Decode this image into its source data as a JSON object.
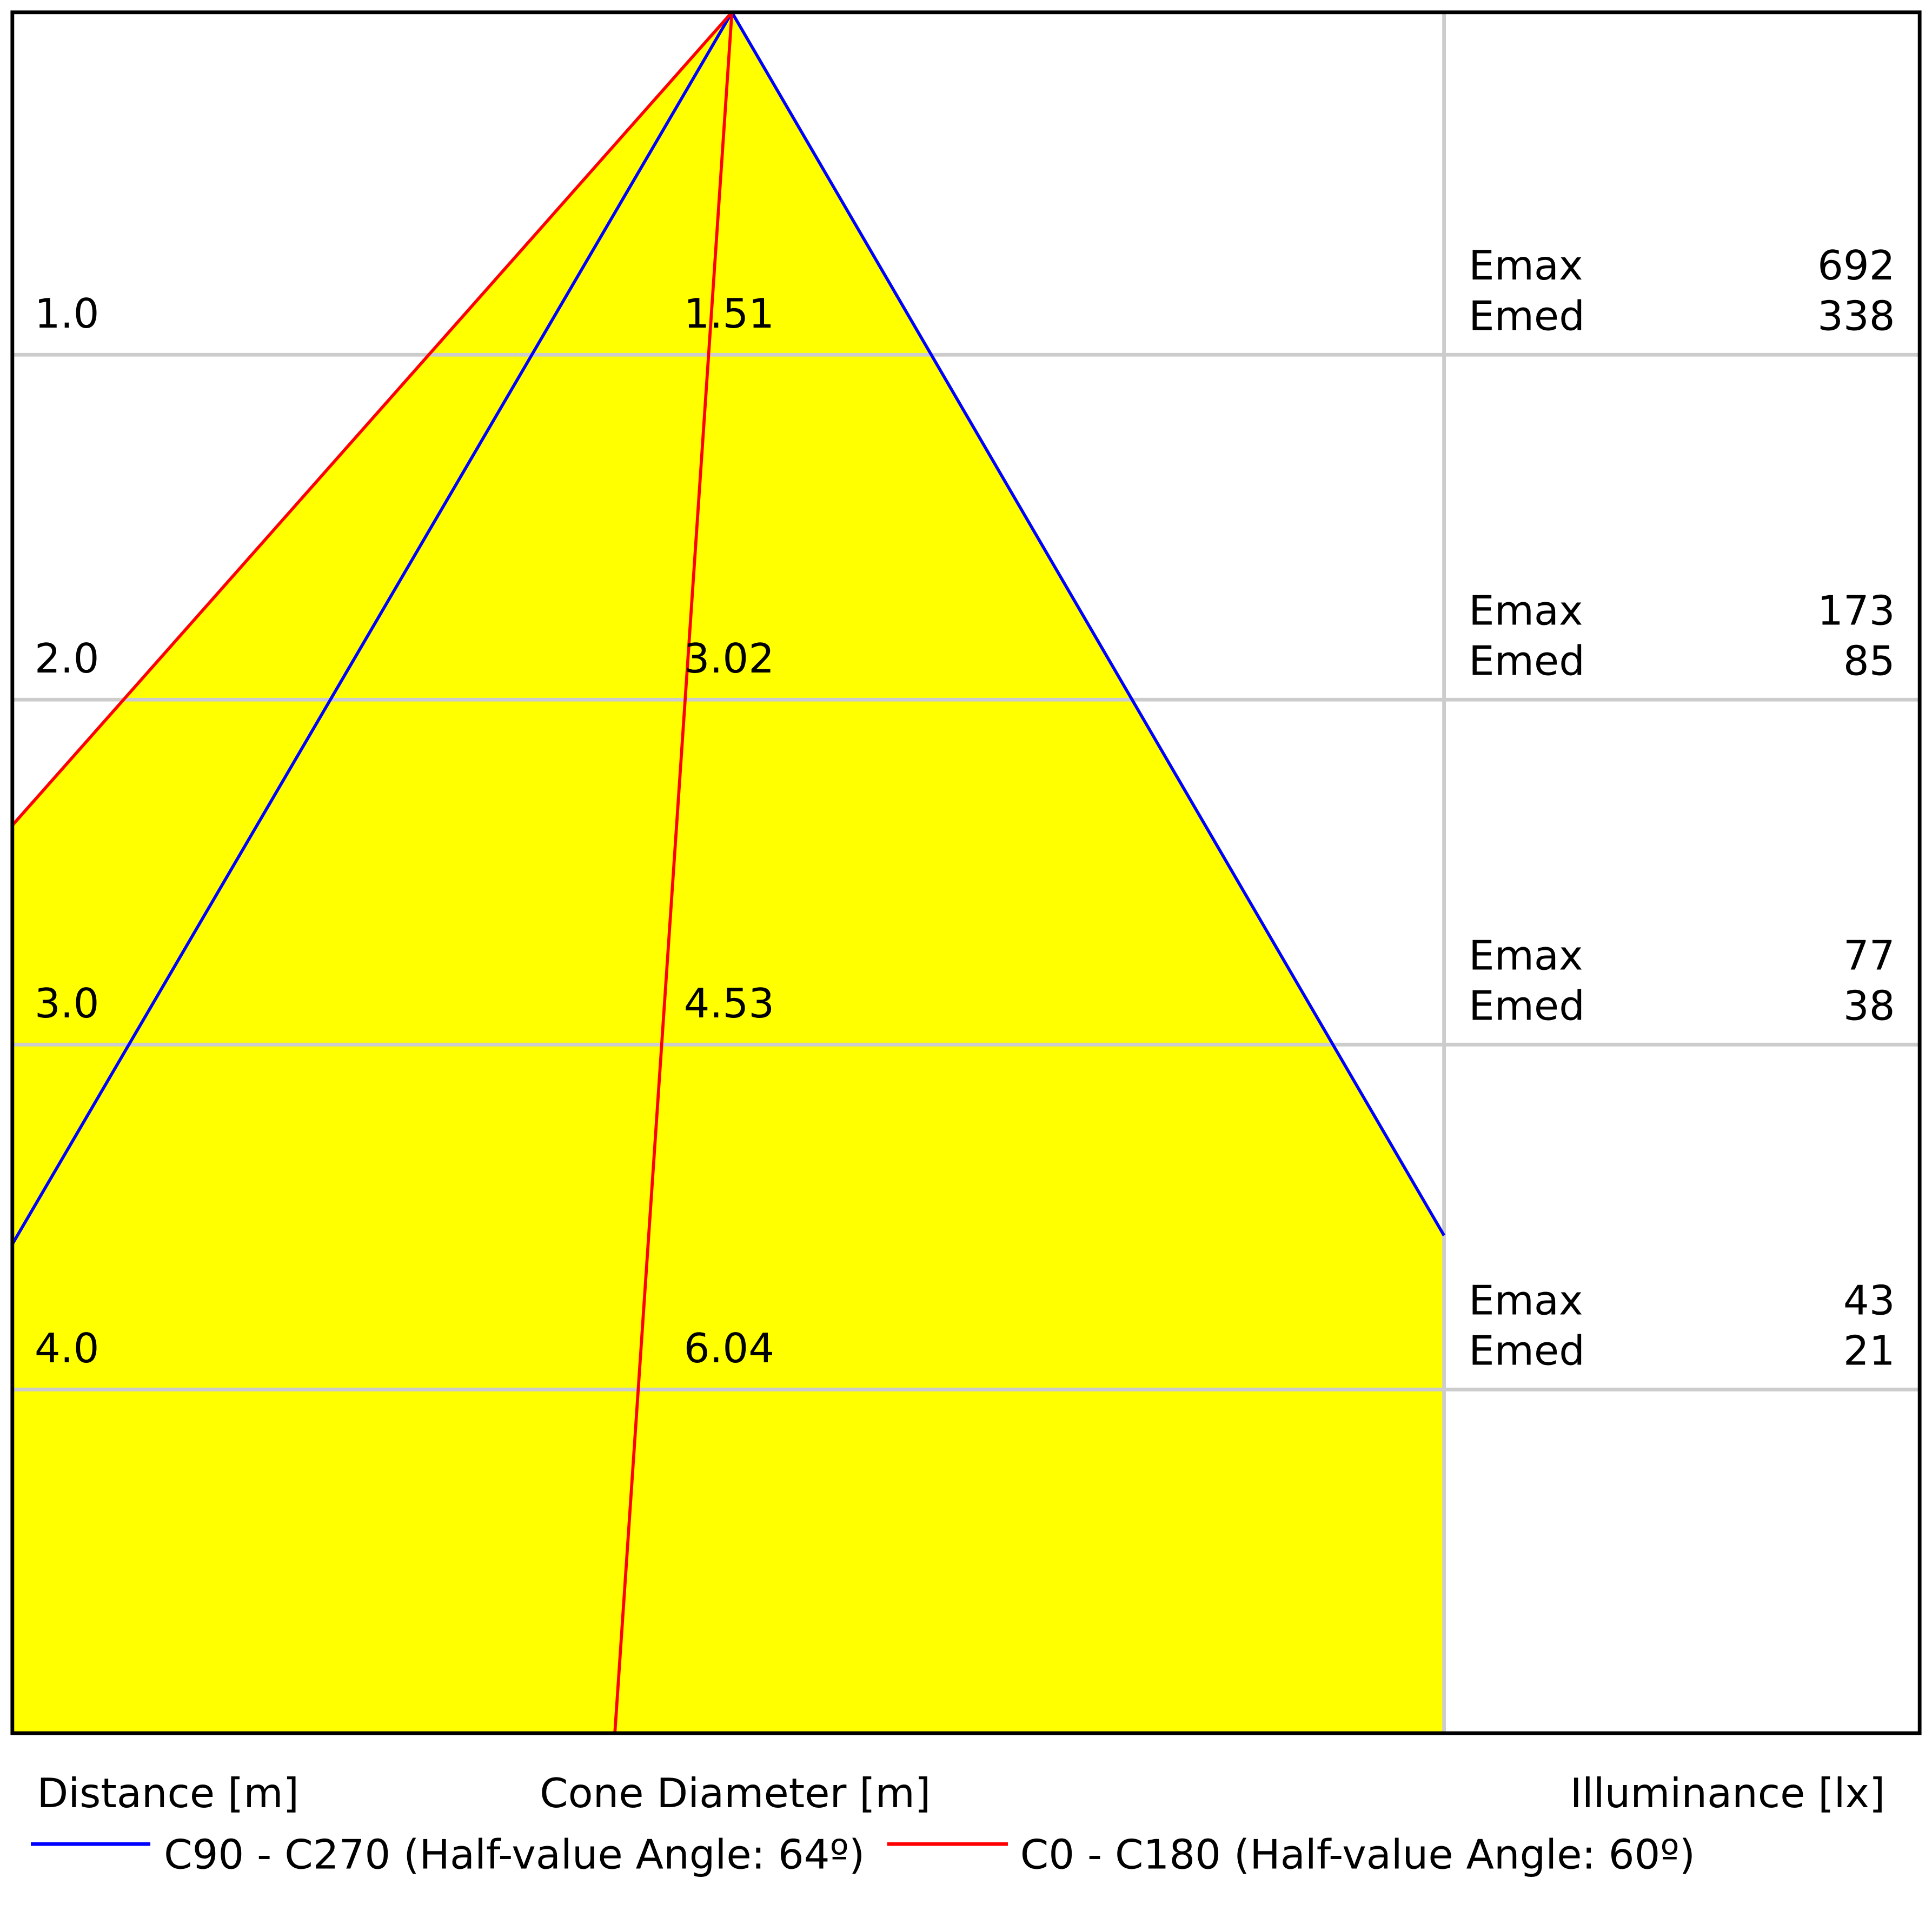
{
  "chart_data": {
    "type": "cone",
    "rows": [
      {
        "distance": "1.0",
        "diameter": 1.51,
        "emax_label": "Emax",
        "emax": 692,
        "emed_label": "Emed",
        "emed": 338
      },
      {
        "distance": "2.0",
        "diameter": 3.02,
        "emax_label": "Emax",
        "emax": 173,
        "emed_label": "Emed",
        "emed": 85
      },
      {
        "distance": "3.0",
        "diameter": 4.53,
        "emax_label": "Emax",
        "emax": 77,
        "emed_label": "Emed",
        "emed": 38
      },
      {
        "distance": "4.0",
        "diameter": 6.04,
        "emax_label": "Emax",
        "emax": 43,
        "emed_label": "Emed",
        "emed": 21
      }
    ],
    "axis_labels": {
      "distance": "Distance [m]",
      "diameter": "Cone Diameter [m]",
      "illuminance": "Illuminance [lx]"
    },
    "legend": [
      {
        "name": "C90 - C270 (Half-value Angle: 64º)",
        "color": "#0000ff"
      },
      {
        "name": "C0 - C180 (Half-value Angle: 60º)",
        "color": "#ff0000"
      }
    ],
    "fill_color": "#ffff00"
  }
}
